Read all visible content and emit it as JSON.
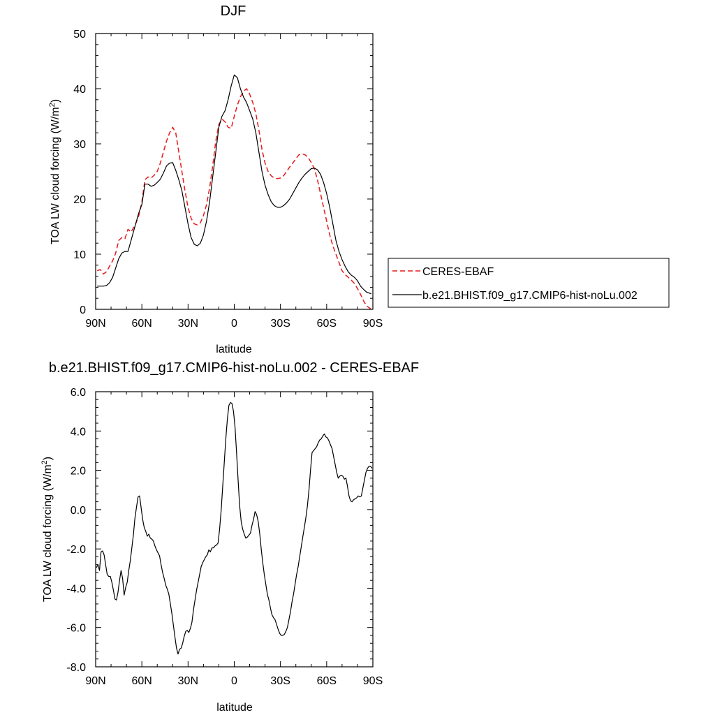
{
  "chart_data": [
    {
      "type": "line",
      "title": "DJF",
      "xlabel": "latitude",
      "ylabel": "TOA LW cloud forcing (W/m",
      "ylabel_sup": "2",
      "ylabel_tail": ")",
      "xlim": [
        90,
        -90
      ],
      "ylim": [
        0,
        50
      ],
      "yticks": [
        0,
        10,
        20,
        30,
        40,
        50
      ],
      "ytick_labels": [
        "0",
        "10",
        "20",
        "30",
        "40",
        "50"
      ],
      "xticks": [
        90,
        60,
        30,
        0,
        -30,
        -60,
        -90
      ],
      "xtick_labels": [
        "90N",
        "60N",
        "30N",
        "0",
        "30S",
        "60S",
        "90S"
      ],
      "legend_position": "right",
      "series": [
        {
          "name": "CERES-EBAF",
          "style": "dashed",
          "color": "#e8191c",
          "x": [
            89,
            87,
            85,
            83,
            81,
            79,
            77,
            75,
            73,
            71,
            69,
            67,
            64,
            62,
            60,
            58,
            56,
            54,
            52,
            50,
            48,
            46,
            44,
            42,
            40,
            38,
            36,
            34,
            32,
            30,
            28,
            26,
            24,
            22,
            20,
            18,
            16,
            14,
            12,
            10,
            8,
            6,
            4,
            2,
            0,
            -2,
            -4,
            -6,
            -8,
            -10,
            -12,
            -14,
            -16,
            -18,
            -20,
            -22,
            -24,
            -26,
            -28,
            -30,
            -32,
            -34,
            -36,
            -38,
            -40,
            -42,
            -44,
            -46,
            -48,
            -50,
            -52,
            -54,
            -56,
            -58,
            -60,
            -62,
            -64,
            -66,
            -68,
            -70,
            -72,
            -74,
            -76,
            -78,
            -80,
            -82,
            -84,
            -86,
            -88,
            -89
          ],
          "y": [
            7.0,
            7.2,
            6.4,
            6.8,
            7.8,
            8.8,
            10.2,
            12.5,
            13.0,
            12.8,
            14.5,
            14.0,
            15.5,
            17.0,
            19.5,
            23.5,
            24.0,
            23.8,
            24.3,
            25.0,
            26.5,
            28.5,
            30.5,
            32.0,
            33.0,
            32.0,
            28.5,
            25.0,
            21.5,
            18.5,
            16.5,
            15.5,
            15.3,
            15.7,
            17.0,
            19.0,
            22.0,
            26.0,
            30.5,
            33.5,
            34.5,
            34.0,
            33.0,
            32.8,
            35.0,
            37.0,
            38.5,
            39.5,
            40.0,
            39.0,
            37.5,
            35.5,
            32.5,
            29.0,
            26.5,
            25.0,
            24.2,
            23.8,
            23.7,
            23.8,
            24.2,
            25.0,
            25.8,
            26.5,
            27.3,
            28.0,
            28.2,
            28.0,
            27.5,
            26.6,
            25.5,
            23.5,
            21.0,
            18.5,
            16.0,
            13.5,
            11.5,
            10.0,
            8.5,
            7.0,
            6.3,
            5.8,
            5.3,
            4.7,
            3.8,
            2.7,
            1.5,
            0.6,
            0.2,
            0.0
          ]
        },
        {
          "name": "b.e21.BHIST.f09_g17.CMIP6-hist-noLu.002",
          "style": "solid",
          "color": "#000000",
          "x": [
            89,
            87,
            85,
            83,
            81,
            79,
            77,
            75,
            73,
            71,
            69,
            67,
            64,
            62,
            60,
            58,
            56,
            54,
            52,
            50,
            48,
            46,
            44,
            42,
            40,
            38,
            36,
            34,
            32,
            30,
            28,
            26,
            24,
            22,
            20,
            18,
            16,
            14,
            12,
            10,
            8,
            6,
            4,
            2,
            0,
            -2,
            -4,
            -6,
            -8,
            -10,
            -12,
            -14,
            -16,
            -18,
            -20,
            -22,
            -24,
            -26,
            -28,
            -30,
            -32,
            -34,
            -36,
            -38,
            -40,
            -42,
            -44,
            -46,
            -48,
            -50,
            -52,
            -54,
            -56,
            -58,
            -60,
            -62,
            -64,
            -66,
            -68,
            -70,
            -72,
            -74,
            -76,
            -78,
            -80,
            -82,
            -84,
            -86,
            -88,
            -89
          ],
          "y": [
            4.2,
            4.2,
            4.2,
            4.3,
            4.8,
            5.8,
            7.5,
            9.2,
            10.2,
            10.5,
            10.5,
            12.5,
            15.5,
            17.5,
            19.0,
            22.7,
            22.7,
            22.3,
            22.5,
            23.0,
            23.6,
            24.7,
            26.0,
            26.5,
            26.6,
            25.2,
            23.5,
            21.5,
            18.5,
            15.5,
            13.0,
            11.8,
            11.5,
            12.0,
            13.5,
            16.0,
            19.5,
            24.0,
            28.5,
            33.0,
            35.0,
            36.0,
            38.0,
            40.5,
            42.5,
            42.0,
            40.0,
            38.5,
            37.5,
            36.0,
            34.5,
            32.0,
            28.5,
            25.0,
            22.5,
            20.8,
            19.5,
            18.8,
            18.5,
            18.5,
            18.8,
            19.3,
            20.0,
            21.0,
            22.0,
            23.0,
            23.8,
            24.5,
            25.0,
            25.5,
            25.6,
            25.3,
            24.5,
            23.0,
            21.0,
            18.5,
            15.5,
            12.5,
            10.5,
            9.0,
            7.8,
            6.8,
            6.2,
            5.8,
            5.2,
            4.2,
            3.6,
            3.1,
            2.9,
            2.8
          ]
        }
      ]
    },
    {
      "type": "line",
      "title": "b.e21.BHIST.f09_g17.CMIP6-hist-noLu.002 - CERES-EBAF",
      "xlabel": "latitude",
      "ylabel": "TOA LW cloud forcing (W/m",
      "ylabel_sup": "2",
      "ylabel_tail": ")",
      "xlim": [
        90,
        -90
      ],
      "ylim": [
        -8,
        6
      ],
      "yticks": [
        -8,
        -6,
        -4,
        -2,
        0,
        2,
        4,
        6
      ],
      "ytick_labels": [
        "-8.0",
        "-6.0",
        "-4.0",
        "-2.0",
        "0.0",
        "2.0",
        "4.0",
        "6.0"
      ],
      "xticks": [
        90,
        60,
        30,
        0,
        -30,
        -60,
        -90
      ],
      "xtick_labels": [
        "90N",
        "60N",
        "30N",
        "0",
        "30S",
        "60S",
        "90S"
      ],
      "series": [
        {
          "name": "",
          "style": "solid",
          "color": "#000000",
          "x": [
            89.5,
            88.5,
            87.5,
            86.5,
            85.5,
            84.5,
            83.5,
            82.5,
            81.5,
            80.5,
            79.5,
            78.5,
            77.5,
            76.5,
            75.5,
            74.5,
            73.5,
            72.5,
            71.5,
            70.5,
            69.5,
            68.5,
            67.5,
            66.5,
            65.5,
            64.5,
            63.5,
            62.5,
            61.5,
            60.5,
            59.5,
            58.5,
            57.5,
            56.5,
            55.5,
            54.5,
            53.5,
            52.5,
            51.5,
            50.5,
            49.5,
            48.5,
            47.5,
            46.5,
            45.5,
            44.5,
            43.5,
            42.5,
            41.5,
            40.5,
            39.5,
            38.5,
            37.5,
            36.5,
            35.5,
            34.5,
            33.5,
            32.5,
            31.5,
            30.5,
            29.5,
            28.5,
            27.5,
            26.5,
            25.5,
            24.5,
            23.5,
            22.5,
            21.5,
            20.5,
            19.5,
            18.5,
            17.5,
            16.5,
            15.5,
            14.5,
            13.5,
            12.5,
            11.5,
            10.5,
            9.5,
            8.5,
            7.5,
            6.5,
            5.5,
            4.5,
            3.5,
            2.5,
            1.5,
            0.5,
            -0.5,
            -1.5,
            -2.5,
            -3.5,
            -4.5,
            -5.5,
            -6.5,
            -7.5,
            -8.5,
            -9.5,
            -10.5,
            -11.5,
            -12.5,
            -13.5,
            -14.5,
            -15.5,
            -16.5,
            -17.5,
            -18.5,
            -19.5,
            -20.5,
            -21.5,
            -22.5,
            -23.5,
            -24.5,
            -25.5,
            -26.5,
            -27.5,
            -28.5,
            -29.5,
            -30.5,
            -31.5,
            -32.5,
            -33.5,
            -34.5,
            -35.5,
            -36.5,
            -37.5,
            -38.5,
            -39.5,
            -40.5,
            -41.5,
            -42.5,
            -43.5,
            -44.5,
            -45.5,
            -46.5,
            -47.5,
            -48.5,
            -49.5,
            -50.5,
            -51.5,
            -52.5,
            -53.5,
            -54.5,
            -55.5,
            -56.5,
            -57.5,
            -58.5,
            -59.5,
            -60.5,
            -61.5,
            -62.5,
            -63.5,
            -64.5,
            -65.5,
            -66.5,
            -67.5,
            -68.5,
            -69.5,
            -70.5,
            -71.5,
            -72.5,
            -73.5,
            -74.5,
            -75.5,
            -76.5,
            -77.5,
            -78.5,
            -79.5,
            -80.5,
            -81.5,
            -82.5,
            -83.5,
            -84.5,
            -85.5,
            -86.5,
            -87.5,
            -88.5,
            -89.5
          ],
          "y": [
            -2.95,
            -2.8,
            -3.1,
            -2.15,
            -2.1,
            -2.3,
            -2.8,
            -3.3,
            -3.4,
            -3.4,
            -3.7,
            -4.1,
            -4.55,
            -4.6,
            -4.2,
            -3.6,
            -3.1,
            -3.5,
            -4.35,
            -3.95,
            -3.7,
            -3.1,
            -2.6,
            -1.95,
            -1.3,
            -0.45,
            0.1,
            0.65,
            0.7,
            0.1,
            -0.5,
            -0.9,
            -1.1,
            -1.35,
            -1.25,
            -1.45,
            -1.5,
            -1.6,
            -1.85,
            -2.05,
            -2.2,
            -2.35,
            -2.8,
            -3.2,
            -3.5,
            -3.85,
            -4.05,
            -4.3,
            -4.8,
            -5.3,
            -5.9,
            -6.5,
            -7.05,
            -7.35,
            -7.1,
            -7.05,
            -6.8,
            -6.45,
            -6.2,
            -6.15,
            -6.25,
            -6.05,
            -5.75,
            -5.1,
            -4.6,
            -4.1,
            -3.7,
            -3.3,
            -2.9,
            -2.7,
            -2.55,
            -2.4,
            -2.3,
            -2.05,
            -2.15,
            -1.95,
            -1.95,
            -1.85,
            -1.8,
            -1.7,
            -1.0,
            0.0,
            1.2,
            2.4,
            3.6,
            4.6,
            5.3,
            5.45,
            5.4,
            5.0,
            4.2,
            2.9,
            1.5,
            0.2,
            -0.6,
            -1.0,
            -1.25,
            -1.45,
            -1.4,
            -1.3,
            -1.2,
            -0.8,
            -0.5,
            -0.1,
            -0.25,
            -0.6,
            -1.2,
            -2.0,
            -2.7,
            -3.3,
            -3.8,
            -4.3,
            -4.6,
            -5.0,
            -5.35,
            -5.5,
            -5.6,
            -5.85,
            -6.1,
            -6.3,
            -6.4,
            -6.4,
            -6.35,
            -6.2,
            -6.0,
            -5.6,
            -5.2,
            -4.7,
            -4.3,
            -3.8,
            -3.3,
            -2.9,
            -2.4,
            -1.9,
            -1.4,
            -0.9,
            -0.4,
            0.2,
            1.0,
            2.0,
            2.9,
            3.0,
            3.1,
            3.2,
            3.4,
            3.55,
            3.6,
            3.75,
            3.85,
            3.7,
            3.65,
            3.5,
            3.3,
            3.1,
            2.7,
            2.3,
            1.9,
            1.6,
            1.7,
            1.75,
            1.7,
            1.55,
            1.6,
            1.2,
            0.7,
            0.45,
            0.4,
            0.5,
            0.55,
            0.6,
            0.7,
            0.65,
            0.7,
            1.1,
            1.5,
            1.9,
            2.1,
            2.2,
            2.2,
            2.1
          ]
        }
      ]
    }
  ]
}
